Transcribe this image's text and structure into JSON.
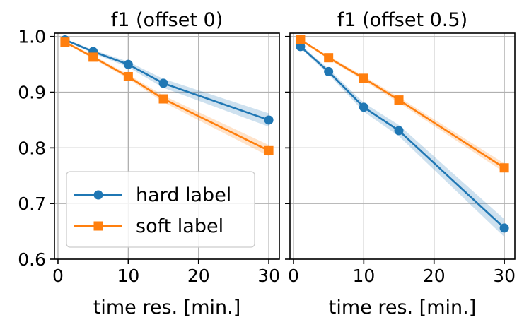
{
  "chart_data": [
    {
      "type": "line",
      "title": "f1 (offset 0)",
      "xlabel": "time res. [min.]",
      "ylabel": "",
      "x": [
        1,
        5,
        10,
        15,
        30
      ],
      "xlim": [
        -0.5,
        31.5
      ],
      "ylim": [
        0.6,
        1.006
      ],
      "xticks": [
        "0",
        "10",
        "20",
        "30"
      ],
      "yticks": [
        "0.6",
        "0.7",
        "0.8",
        "0.9",
        "1.0"
      ],
      "grid": true,
      "legend": "lower-left",
      "series": [
        {
          "name": "hard label",
          "color": "#1f77b4",
          "marker": "circle",
          "values": [
            0.994,
            0.973,
            0.95,
            0.916,
            0.85
          ],
          "band_halfwidth": [
            0.002,
            0.003,
            0.005,
            0.008,
            0.012
          ]
        },
        {
          "name": "soft label",
          "color": "#ff7f0e",
          "marker": "square",
          "values": [
            0.99,
            0.963,
            0.928,
            0.888,
            0.795
          ],
          "band_halfwidth": [
            0.002,
            0.003,
            0.004,
            0.006,
            0.01
          ]
        }
      ]
    },
    {
      "type": "line",
      "title": "f1 (offset 0.5)",
      "xlabel": "time res. [min.]",
      "ylabel": "",
      "x": [
        1,
        5,
        10,
        15,
        30
      ],
      "xlim": [
        -0.5,
        31.5
      ],
      "ylim": [
        0.6,
        1.006
      ],
      "xticks": [
        "0",
        "10",
        "20",
        "30"
      ],
      "yticks": [],
      "grid": true,
      "legend": "",
      "series": [
        {
          "name": "hard label",
          "color": "#1f77b4",
          "marker": "circle",
          "values": [
            0.982,
            0.937,
            0.873,
            0.831,
            0.656
          ],
          "band_halfwidth": [
            0.003,
            0.005,
            0.008,
            0.01,
            0.016
          ]
        },
        {
          "name": "soft label",
          "color": "#ff7f0e",
          "marker": "square",
          "values": [
            0.994,
            0.962,
            0.925,
            0.886,
            0.764
          ],
          "band_halfwidth": [
            0.002,
            0.003,
            0.004,
            0.005,
            0.008
          ]
        }
      ]
    }
  ]
}
